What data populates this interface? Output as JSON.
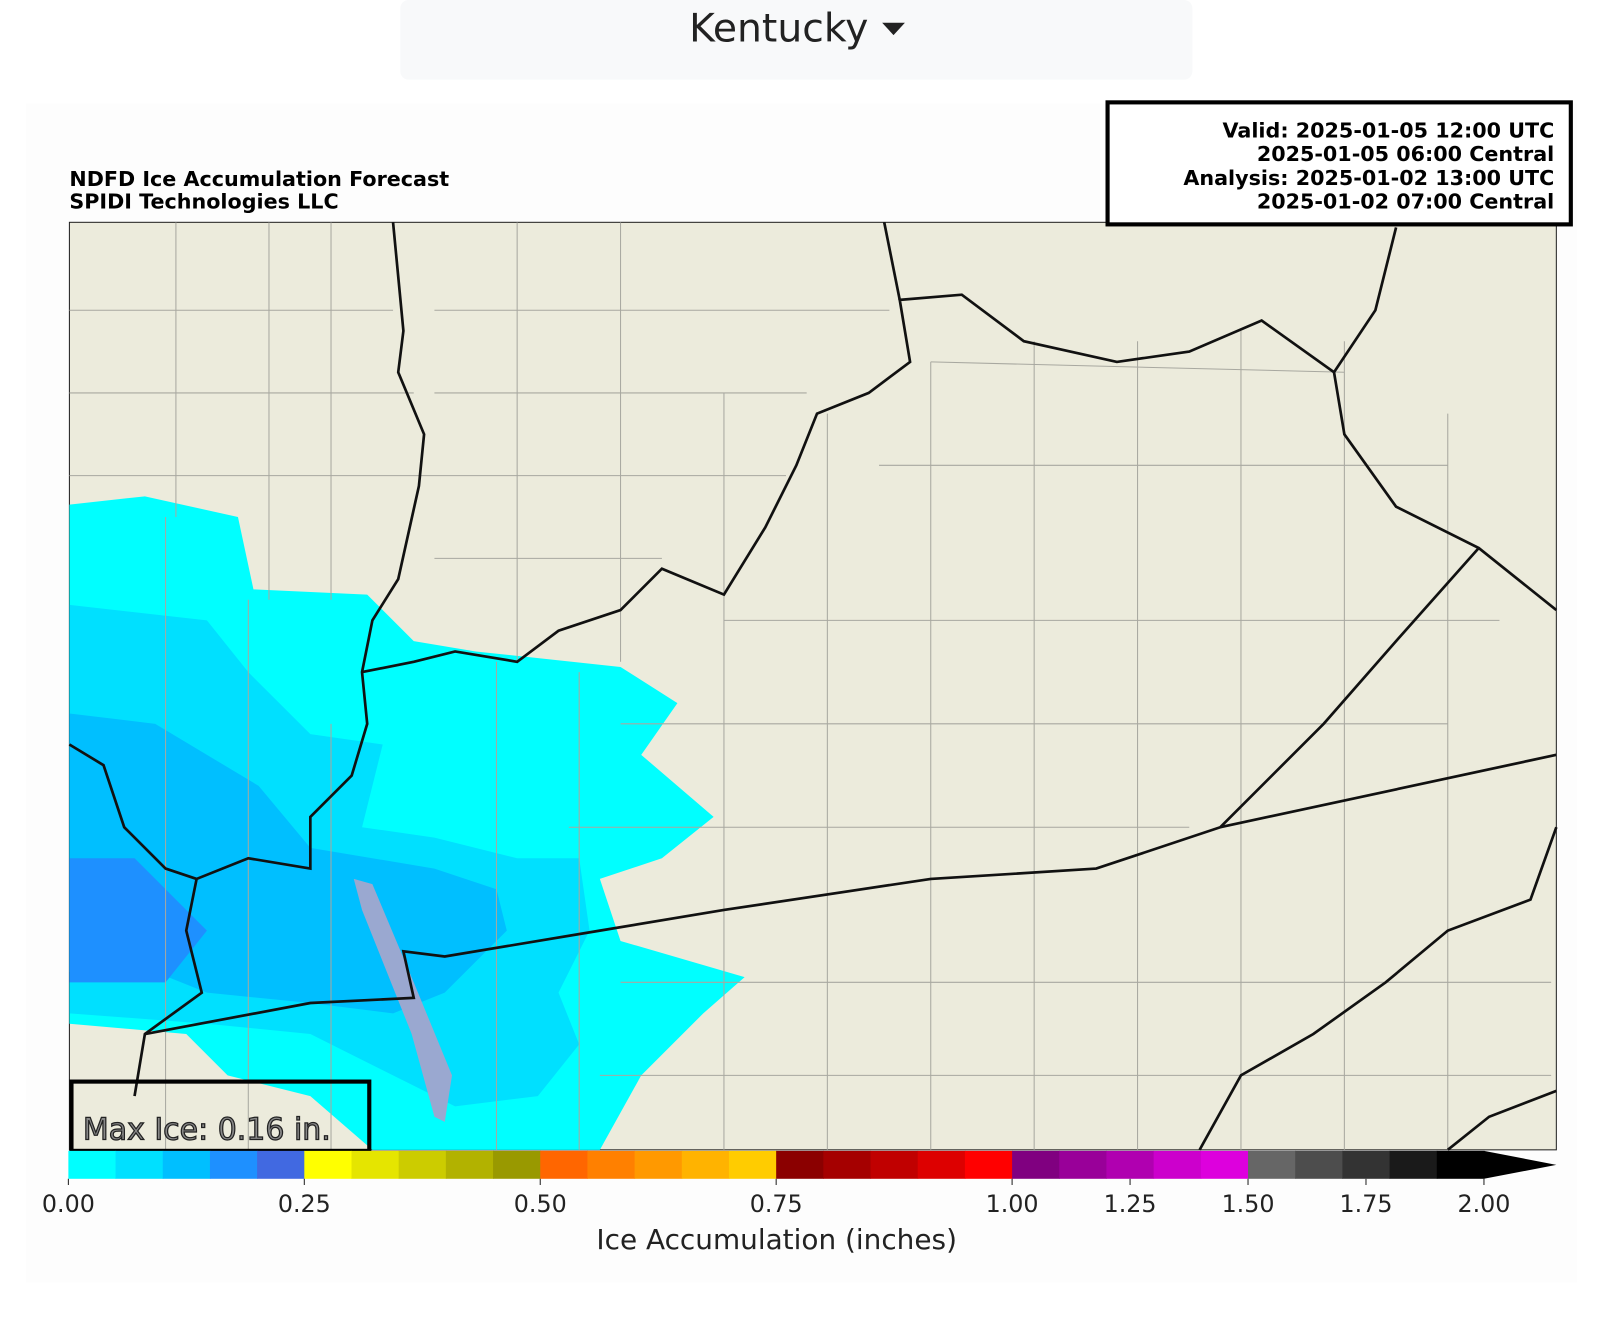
{
  "header": {
    "region": "Kentucky"
  },
  "title": [
    "NDFD Ice Accumulation Forecast",
    "SPIDI Technologies LLC"
  ],
  "valid_info": [
    "Valid: 2025-01-05 12:00 UTC",
    "2025-01-05 06:00 Central",
    "Analysis: 2025-01-02 13:00 UTC",
    "2025-01-02 07:00 Central"
  ],
  "max_label": "Max Ice: 0.16 in.",
  "colorbar": {
    "label": "Ice Accumulation (inches)",
    "bounds": [
      0,
      0.05,
      0.1,
      0.15,
      0.2,
      0.25,
      0.3,
      0.35,
      0.4,
      0.45,
      0.5,
      0.55,
      0.6,
      0.65,
      0.7,
      0.75,
      0.8,
      0.85,
      0.9,
      0.95,
      1,
      1.1,
      1.2,
      1.3,
      1.4,
      1.5,
      1.6,
      1.7,
      1.8,
      1.9,
      2
    ],
    "colors": [
      "#00ffff",
      "#00e0ff",
      "#00bfff",
      "#1e90ff",
      "#4169e1",
      "#ffff00",
      "#e5e500",
      "#cccc00",
      "#b2b200",
      "#999900",
      "#ff6600",
      "#ff8000",
      "#ff9900",
      "#ffb300",
      "#ffcc00",
      "#8b0000",
      "#a50000",
      "#c00000",
      "#dd0000",
      "#ff0000",
      "#800080",
      "#990099",
      "#b000b0",
      "#cc00cc",
      "#dd00dd",
      "#666666",
      "#4d4d4d",
      "#333333",
      "#1a1a1a",
      "#000000"
    ],
    "extend_color": "#000000",
    "ticks": [
      {
        "value": 0,
        "label": "0.00"
      },
      {
        "value": 0.25,
        "label": "0.25"
      },
      {
        "value": 0.5,
        "label": "0.50"
      },
      {
        "value": 0.75,
        "label": "0.75"
      },
      {
        "value": 1,
        "label": "1.00"
      },
      {
        "value": 1.25,
        "label": "1.25"
      },
      {
        "value": 1.5,
        "label": "1.50"
      },
      {
        "value": 1.75,
        "label": "1.75"
      },
      {
        "value": 2,
        "label": "2.00"
      }
    ]
  }
}
